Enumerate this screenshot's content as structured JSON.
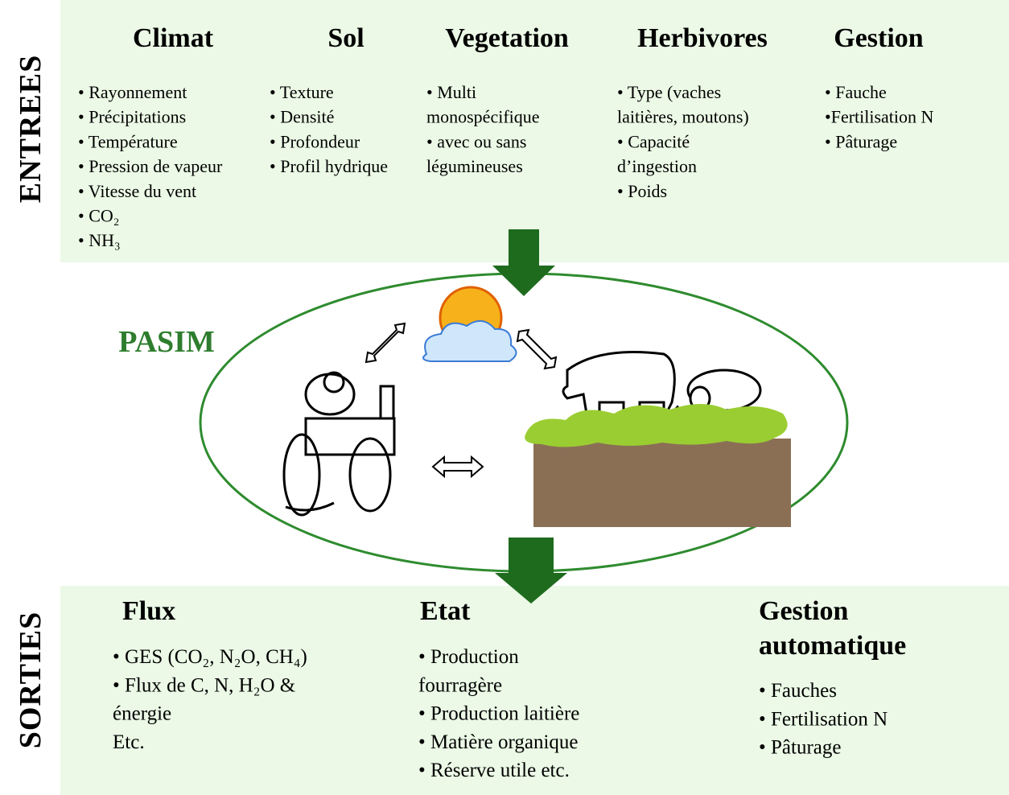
{
  "side_labels": {
    "inputs": "ENTREES",
    "outputs": "SORTIES"
  },
  "model": {
    "name": "PASIM"
  },
  "inputs": {
    "columns": [
      {
        "title": "Climat",
        "lines": [
          "• Rayonnement",
          "• Précipitations",
          "• Température",
          "• Pression de vapeur",
          "• Vitesse du vent",
          "• CO₂",
          "• NH₃"
        ]
      },
      {
        "title": "Sol",
        "lines": [
          "• Texture",
          "• Densité",
          "• Profondeur",
          "• Profil hydrique"
        ]
      },
      {
        "title": "Vegetation",
        "lines": [
          "• Multi",
          "monospécifique",
          "• avec ou sans",
          "légumineuses"
        ]
      },
      {
        "title": "Herbivores",
        "lines": [
          "• Type (vaches",
          "laitières, moutons)",
          "• Capacité",
          "d’ingestion",
          "• Poids"
        ]
      },
      {
        "title": "Gestion",
        "lines": [
          "• Fauche",
          "•Fertilisation N",
          "• Pâturage"
        ]
      }
    ]
  },
  "outputs": {
    "columns": [
      {
        "title": [
          "Flux"
        ],
        "lines": [
          "• GES (CO₂, N₂O, CH₄)",
          "• Flux de C, N, H₂O  &",
          "énergie",
          "Etc."
        ]
      },
      {
        "title": [
          "Etat"
        ],
        "lines": [
          "• Production",
          "fourragère",
          "• Production laitière",
          "• Matière organique",
          "• Réserve utile etc."
        ]
      },
      {
        "title": [
          "Gestion",
          "automatique"
        ],
        "lines": [
          "• Fauches",
          "• Fertilisation N",
          "• Pâturage"
        ]
      }
    ]
  }
}
